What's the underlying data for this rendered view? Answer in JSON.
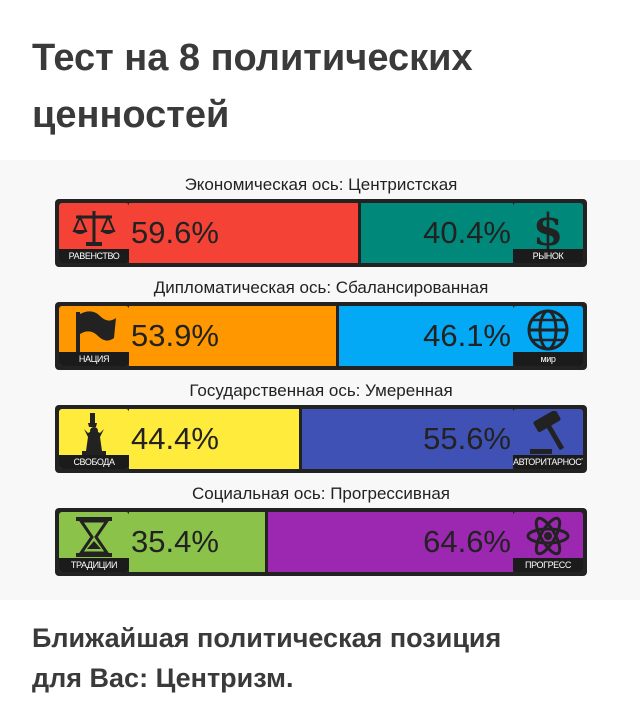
{
  "page": {
    "title": "Тест на 8 политических ценностей",
    "result_line1": "Ближайшая политическая позиция",
    "result_line2": "для Вас: Центризм."
  },
  "chart_data": {
    "type": "bar",
    "stacked": true,
    "orientation": "horizontal",
    "title": "",
    "axes": [
      {
        "label": "Экономическая ось: Центристская",
        "left": {
          "name": "РАВЕНСТВО",
          "value": 59.6,
          "label": "59.6%",
          "color": "#f44336",
          "icon": "scales-icon",
          "icon_color": "#f44336"
        },
        "right": {
          "name": "РЫНОК",
          "value": 40.4,
          "label": "40.4%",
          "color": "#00897b",
          "icon": "dollar-icon",
          "icon_color": "#00897b"
        }
      },
      {
        "label": "Дипломатическая ось: Сбалансированная",
        "left": {
          "name": "НАЦИЯ",
          "value": 53.9,
          "label": "53.9%",
          "color": "#ff9800",
          "icon": "flag-icon",
          "icon_color": "#ff9800"
        },
        "right": {
          "name": "мир",
          "value": 46.1,
          "label": "46.1%",
          "color": "#03a9f4",
          "icon": "globe-icon",
          "icon_color": "#03a9f4"
        }
      },
      {
        "label": "Государственная ось: Умеренная",
        "left": {
          "name": "СВОБОДА",
          "value": 44.4,
          "label": "44.4%",
          "color": "#ffeb3b",
          "icon": "liberty-icon",
          "icon_color": "#ffeb3b"
        },
        "right": {
          "name": "АВТОРИТАРНОСТЬ",
          "value": 55.6,
          "label": "55.6%",
          "color": "#3f51b5",
          "icon": "gavel-icon",
          "icon_color": "#3f51b5"
        }
      },
      {
        "label": "Социальная ось: Прогрессивная",
        "left": {
          "name": "ТРАДИЦИИ",
          "value": 35.4,
          "label": "35.4%",
          "color": "#8bc34a",
          "icon": "hourglass-icon",
          "icon_color": "#8bc34a"
        },
        "right": {
          "name": "ПРОГРЕСС",
          "value": 64.6,
          "label": "64.6%",
          "color": "#9c27b0",
          "icon": "atom-icon",
          "icon_color": "#9c27b0"
        }
      }
    ],
    "xlim": [
      0,
      100
    ]
  }
}
